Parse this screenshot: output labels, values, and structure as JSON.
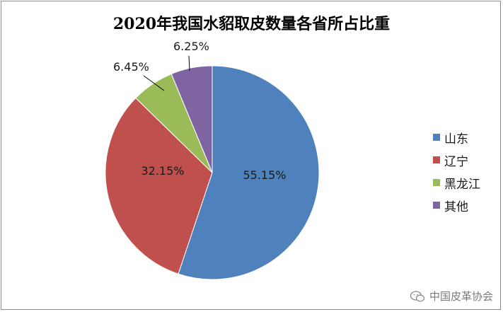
{
  "chart_data": {
    "type": "pie",
    "title": "2020年我国水貂取皮数量各省所占比重",
    "categories": [
      "山东",
      "辽宁",
      "黑龙江",
      "其他"
    ],
    "values": [
      55.15,
      32.15,
      6.45,
      6.25
    ],
    "value_labels": [
      "55.15%",
      "32.15%",
      "6.45%",
      "6.25%"
    ],
    "colors": [
      "#4f81bd",
      "#c0504d",
      "#9bbb59",
      "#8064a2"
    ],
    "legend_position": "right"
  },
  "watermark": {
    "text": "中国皮革协会",
    "icon": "wechat-icon"
  }
}
